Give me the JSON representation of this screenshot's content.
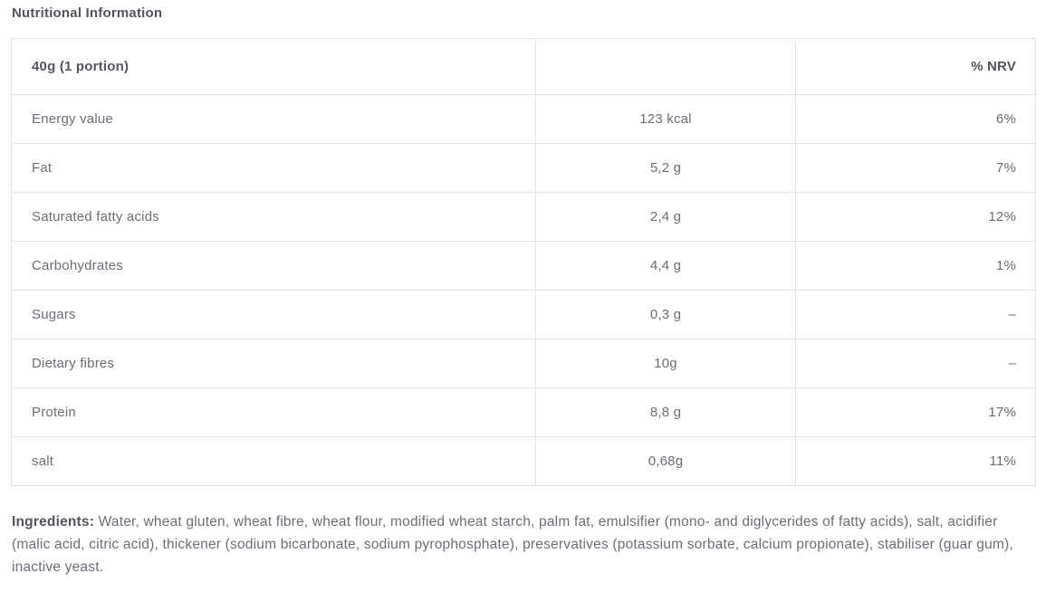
{
  "title": "Nutritional Information",
  "table": {
    "headers": {
      "portion": "40g (1 portion)",
      "value": "",
      "nrv": "% NRV"
    },
    "rows": [
      {
        "label": "Energy value",
        "value": "123 kcal",
        "nrv": "6%"
      },
      {
        "label": "Fat",
        "value": "5,2 g",
        "nrv": "7%"
      },
      {
        "label": "Saturated fatty acids",
        "value": "2,4 g",
        "nrv": "12%"
      },
      {
        "label": "Carbohydrates",
        "value": "4,4 g",
        "nrv": "1%"
      },
      {
        "label": "Sugars",
        "value": "0,3 g",
        "nrv": "–"
      },
      {
        "label": "Dietary fibres",
        "value": "10g",
        "nrv": "–"
      },
      {
        "label": "Protein",
        "value": "8,8 g",
        "nrv": "17%"
      },
      {
        "label": "salt",
        "value": "0,68g",
        "nrv": "11%"
      }
    ]
  },
  "ingredients": {
    "label": "Ingredients:",
    "text": " Water, wheat gluten, wheat fibre, wheat flour, modified wheat starch, palm fat, emulsifier (mono- and diglycerides of fatty acids), salt, acidifier (malic acid, citric acid), thickener (sodium bicarbonate, sodium pyrophosphate), preservatives (potassium sorbate, calcium propionate), stabiliser (guar gum), inactive yeast."
  },
  "colors": {
    "heading_text": "#54545e",
    "body_text": "#6d6d78",
    "border": "#e4e4e4",
    "background": "#ffffff"
  }
}
